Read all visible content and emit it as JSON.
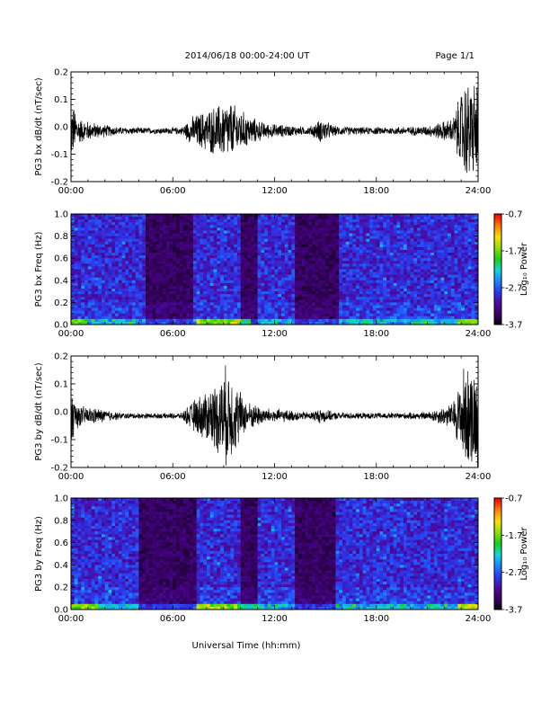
{
  "header": {
    "title": "2014/06/18  00:00-24:00 UT",
    "page": "Page 1/1"
  },
  "xlabel": "Universal Time (hh:mm)",
  "colors": {
    "trace": "#000000",
    "spectrogram_background": "#000000",
    "colormap": [
      "#000000",
      "#3a0066",
      "#4a0aa0",
      "#2a3aee",
      "#1a86ff",
      "#10d8d8",
      "#18d018",
      "#8ce000",
      "#ffe000",
      "#ff8000",
      "#ff0000"
    ]
  },
  "chart_data": [
    {
      "type": "line",
      "ylabel": "PG3 bx dB/dt (nT/sec)",
      "xlim_hours": [
        0,
        24
      ],
      "x_tick_labels": [
        "00:00",
        "06:00",
        "12:00",
        "18:00",
        "24:00"
      ],
      "ylim": [
        -0.2,
        0.2
      ],
      "y_tick_labels": [
        "0.2",
        "0.1",
        "0.0",
        "-0.1",
        "-0.2"
      ],
      "envelope": [
        {
          "hour": 0.0,
          "amp": 0.12
        },
        {
          "hour": 0.5,
          "amp": 0.05
        },
        {
          "hour": 1.5,
          "amp": 0.03
        },
        {
          "hour": 3.0,
          "amp": 0.015
        },
        {
          "hour": 5.0,
          "amp": 0.012
        },
        {
          "hour": 6.5,
          "amp": 0.015
        },
        {
          "hour": 7.2,
          "amp": 0.06
        },
        {
          "hour": 8.5,
          "amp": 0.1
        },
        {
          "hour": 9.3,
          "amp": 0.12
        },
        {
          "hour": 10.5,
          "amp": 0.06
        },
        {
          "hour": 11.5,
          "amp": 0.03
        },
        {
          "hour": 12.5,
          "amp": 0.025
        },
        {
          "hour": 14.0,
          "amp": 0.015
        },
        {
          "hour": 14.8,
          "amp": 0.05
        },
        {
          "hour": 15.5,
          "amp": 0.02
        },
        {
          "hour": 17.0,
          "amp": 0.015
        },
        {
          "hour": 19.0,
          "amp": 0.015
        },
        {
          "hour": 21.0,
          "amp": 0.02
        },
        {
          "hour": 22.5,
          "amp": 0.05
        },
        {
          "hour": 23.2,
          "amp": 0.2
        },
        {
          "hour": 24.0,
          "amp": 0.2
        }
      ]
    },
    {
      "type": "heatmap",
      "ylabel": "PG3 bx Freq (Hz)",
      "xlim_hours": [
        0,
        24
      ],
      "x_tick_labels": [
        "00:00",
        "06:00",
        "12:00",
        "18:00",
        "24:00"
      ],
      "ylim": [
        0.0,
        1.0
      ],
      "y_tick_labels": [
        "1.0",
        "0.8",
        "0.6",
        "0.4",
        "0.2",
        "0.0"
      ],
      "colorbar": {
        "label": "Log₁₀ Power",
        "range": [
          -3.7,
          -0.7
        ],
        "tick_labels": [
          "-0.7",
          "-1.7",
          "-2.7",
          "-3.7"
        ]
      },
      "quiet_intervals_hours": [
        [
          4.5,
          7.2
        ],
        [
          10.0,
          11.0
        ],
        [
          13.3,
          15.8
        ]
      ],
      "low_freq_enhancements_hours": [
        [
          0.0,
          1.0
        ],
        [
          7.5,
          10.5
        ],
        [
          22.8,
          24.0
        ]
      ]
    },
    {
      "type": "line",
      "ylabel": "PG3 by dB/dt (nT/sec)",
      "xlim_hours": [
        0,
        24
      ],
      "x_tick_labels": [
        "00:00",
        "06:00",
        "12:00",
        "18:00",
        "24:00"
      ],
      "ylim": [
        -0.2,
        0.2
      ],
      "y_tick_labels": [
        "0.2",
        "0.1",
        "0.0",
        "-0.1",
        "-0.2"
      ],
      "envelope": [
        {
          "hour": 0.0,
          "amp": 0.1
        },
        {
          "hour": 0.5,
          "amp": 0.04
        },
        {
          "hour": 1.5,
          "amp": 0.03
        },
        {
          "hour": 3.0,
          "amp": 0.012
        },
        {
          "hour": 5.0,
          "amp": 0.01
        },
        {
          "hour": 6.5,
          "amp": 0.012
        },
        {
          "hour": 7.2,
          "amp": 0.06
        },
        {
          "hour": 8.5,
          "amp": 0.13
        },
        {
          "hour": 9.2,
          "amp": 0.2
        },
        {
          "hour": 10.3,
          "amp": 0.06
        },
        {
          "hour": 11.5,
          "amp": 0.03
        },
        {
          "hour": 12.5,
          "amp": 0.025
        },
        {
          "hour": 14.0,
          "amp": 0.015
        },
        {
          "hour": 14.8,
          "amp": 0.03
        },
        {
          "hour": 15.5,
          "amp": 0.015
        },
        {
          "hour": 17.0,
          "amp": 0.012
        },
        {
          "hour": 19.0,
          "amp": 0.012
        },
        {
          "hour": 21.0,
          "amp": 0.015
        },
        {
          "hour": 22.5,
          "amp": 0.05
        },
        {
          "hour": 23.2,
          "amp": 0.2
        },
        {
          "hour": 24.0,
          "amp": 0.2
        }
      ]
    },
    {
      "type": "heatmap",
      "ylabel": "PG3 by Freq (Hz)",
      "xlim_hours": [
        0,
        24
      ],
      "x_tick_labels": [
        "00:00",
        "06:00",
        "12:00",
        "18:00",
        "24:00"
      ],
      "ylim": [
        0.0,
        1.0
      ],
      "y_tick_labels": [
        "1.0",
        "0.8",
        "0.6",
        "0.4",
        "0.2",
        "0.0"
      ],
      "colorbar": {
        "label": "Log₁₀ Power",
        "range": [
          -3.7,
          -0.7
        ],
        "tick_labels": [
          "-0.7",
          "-1.7",
          "-2.7",
          "-3.7"
        ]
      },
      "quiet_intervals_hours": [
        [
          4.0,
          7.3
        ],
        [
          10.0,
          11.0
        ],
        [
          13.2,
          15.6
        ]
      ],
      "low_freq_enhancements_hours": [
        [
          0.0,
          1.5
        ],
        [
          7.5,
          11.0
        ],
        [
          22.8,
          24.0
        ]
      ]
    }
  ]
}
